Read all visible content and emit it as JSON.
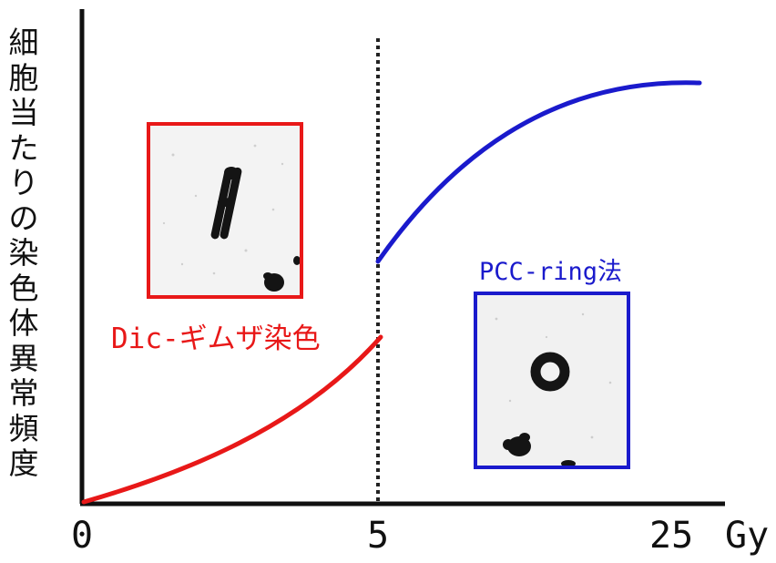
{
  "y_axis_label": "細胞当たりの染色体異常頻度",
  "x_ticks": [
    "0",
    "5",
    "25"
  ],
  "x_unit": "Gy",
  "methods": [
    {
      "label": "Dic-ギムザ染色",
      "color": "#e81818",
      "image": "dicentric-chromosome-micrograph",
      "dose_range": [
        "0",
        "5"
      ]
    },
    {
      "label": "PCC-ring法",
      "color": "#1a1acc",
      "image": "ring-chromosome-micrograph",
      "dose_range": [
        "5",
        "25"
      ]
    }
  ],
  "colors": {
    "axis": "#111111",
    "divider": "#222222"
  }
}
